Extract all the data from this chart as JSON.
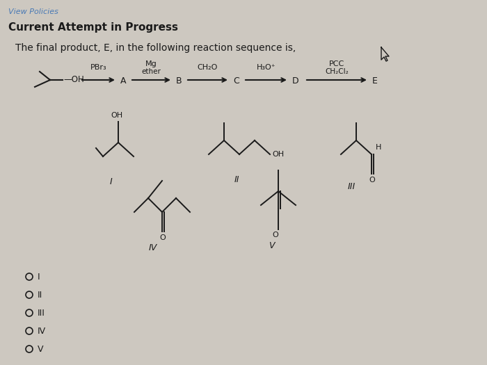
{
  "bg_color": "#cdc8c0",
  "title_link": "View Policies",
  "title_link_color": "#4a7ab5",
  "subtitle": "Current Attempt in Progress",
  "question": "The final product, E, in the following reaction sequence is,",
  "font_color": "#1a1a1a",
  "answer_choices": [
    "I",
    "II",
    "III",
    "IV",
    "V"
  ],
  "fig_width": 7.0,
  "fig_height": 5.25,
  "dpi": 100
}
